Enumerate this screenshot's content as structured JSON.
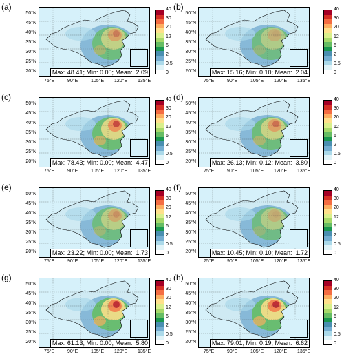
{
  "panels": [
    {
      "label": "(a)",
      "stats": "Max: 48.41; Min: 0.00; Mean:  2.09",
      "intensity": 0.55
    },
    {
      "label": "(b)",
      "stats": "Max: 15.16; Min: 0.10; Mean:  2.04",
      "intensity": 0.35
    },
    {
      "label": "(c)",
      "stats": "Max: 78.43; Min: 0.00; Mean:  4.47",
      "intensity": 0.8
    },
    {
      "label": "(d)",
      "stats": "Max: 26.13; Min: 0.12; Mean:  3.80",
      "intensity": 0.6
    },
    {
      "label": "(e)",
      "stats": "Max: 23.22; Min: 0.00; Mean:  1.73",
      "intensity": 0.45
    },
    {
      "label": "(f)",
      "stats": "Max: 10.45; Min: 0.10; Mean:  1.72",
      "intensity": 0.35
    },
    {
      "label": "(g)",
      "stats": "Max: 61.13; Min: 0.00; Mean:  5.80",
      "intensity": 0.95
    },
    {
      "label": "(h)",
      "stats": "Max: 79.01; Min: 0.19; Mean:  6.62",
      "intensity": 0.95
    }
  ],
  "lat_labels": [
    "50°N",
    "45°N",
    "40°N",
    "35°N",
    "30°N",
    "25°N",
    "20°N"
  ],
  "lon_labels": [
    "75°E",
    "90°E",
    "105°E",
    "120°E",
    "135°E"
  ],
  "colorbar": {
    "labels": [
      "40",
      "30",
      "20",
      "12",
      "6",
      "2",
      "0.5",
      "0"
    ],
    "colors": [
      "#a50026",
      "#d73027",
      "#f46d43",
      "#fdae61",
      "#fee08b",
      "#d9ef8b",
      "#a6d96a",
      "#66bd63",
      "#1a9850",
      "#4a8fb0",
      "#74add1",
      "#abd9e9",
      "#e0f3f8",
      "#ffffff"
    ]
  }
}
